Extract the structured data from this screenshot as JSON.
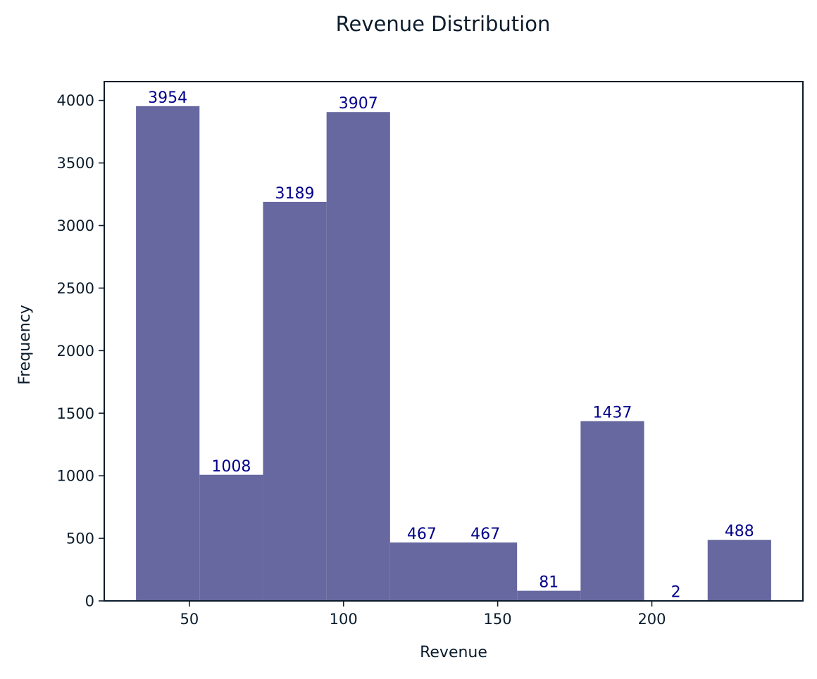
{
  "chart_data": {
    "type": "bar",
    "title": "Revenue Distribution",
    "xlabel": "Revenue",
    "ylabel": "Frequency",
    "bins": [
      {
        "start": 32.7,
        "end": 53.3,
        "count": 3954
      },
      {
        "start": 53.3,
        "end": 73.9,
        "count": 1008
      },
      {
        "start": 73.9,
        "end": 94.5,
        "count": 3189
      },
      {
        "start": 94.5,
        "end": 115.1,
        "count": 3907
      },
      {
        "start": 115.1,
        "end": 135.7,
        "count": 467
      },
      {
        "start": 135.7,
        "end": 156.3,
        "count": 467
      },
      {
        "start": 156.3,
        "end": 176.9,
        "count": 81
      },
      {
        "start": 176.9,
        "end": 197.5,
        "count": 1437
      },
      {
        "start": 197.5,
        "end": 218.1,
        "count": 2
      },
      {
        "start": 218.1,
        "end": 238.7,
        "count": 488
      }
    ],
    "xlim": [
      22.4,
      249.0
    ],
    "ylim": [
      0,
      4150
    ],
    "xticks": [
      50,
      100,
      150,
      200
    ],
    "yticks": [
      0,
      500,
      1000,
      1500,
      2000,
      2500,
      3000,
      3500,
      4000
    ],
    "grid": false,
    "legend": "none",
    "bar_color": "#66689f",
    "label_color": "#00008b",
    "text_color": "#0b1c2c"
  }
}
